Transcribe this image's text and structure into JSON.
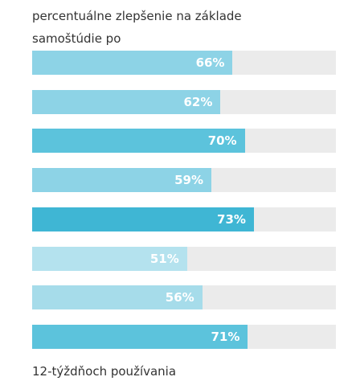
{
  "chart_data": {
    "type": "bar",
    "orientation": "horizontal",
    "title": "percentuálne zlepšenie na základe samoštúdie po",
    "subtitle": "12-týždňoch používania",
    "values": [
      66,
      62,
      70,
      59,
      73,
      51,
      56,
      71
    ],
    "value_labels": [
      "66%",
      "62%",
      "70%",
      "59%",
      "73%",
      "51%",
      "56%",
      "71%"
    ],
    "colors": [
      "#8dd3e6",
      "#8dd3e6",
      "#5cc3dc",
      "#8dd3e6",
      "#3fb6d4",
      "#b4e2ee",
      "#a6dcea",
      "#5cc3dc"
    ],
    "xlim": [
      0,
      100
    ]
  }
}
